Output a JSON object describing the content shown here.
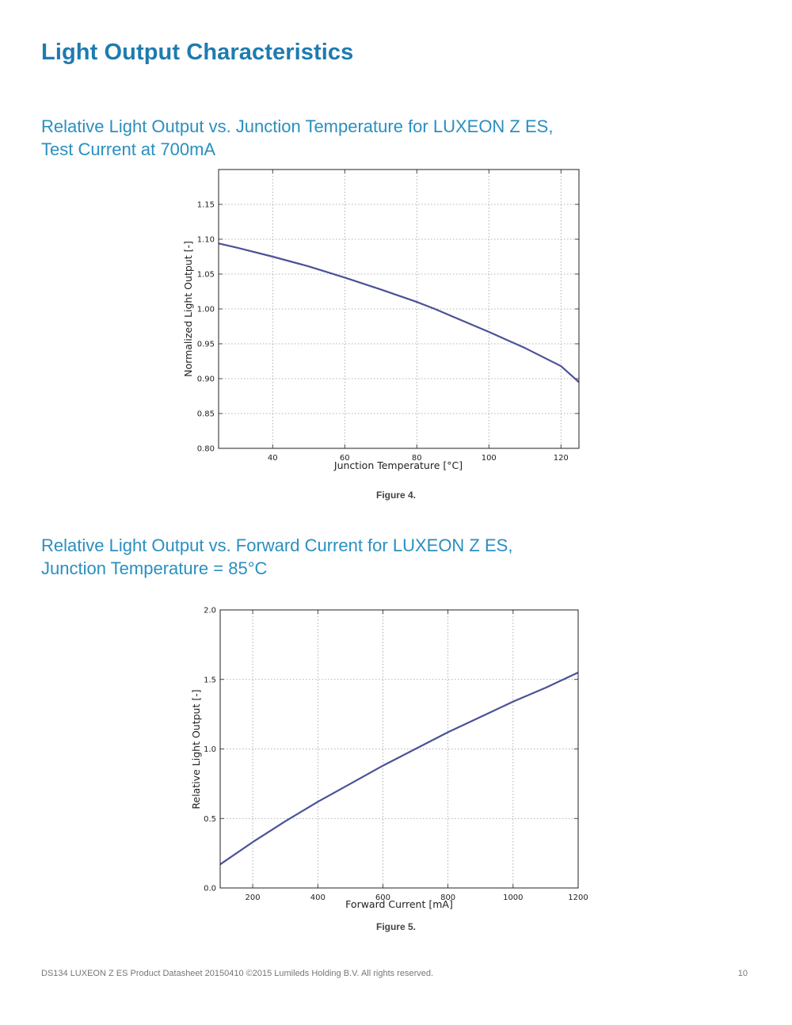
{
  "page": {
    "title": "Light Output Characteristics",
    "footer_left": "DS134 LUXEON Z ES Product Datasheet  20150410 ©2015 Lumileds Holding B.V. All rights reserved.",
    "page_number": "10"
  },
  "figure4": {
    "heading_line1": "Relative Light Output vs. Junction Temperature for LUXEON Z ES,",
    "heading_line2": "Test Current at 700mA",
    "caption": "Figure 4."
  },
  "figure5": {
    "heading_line1": "Relative Light Output vs. Forward Current for LUXEON Z ES,",
    "heading_line2": "Junction Temperature = 85°C",
    "caption": "Figure 5."
  },
  "colors": {
    "heading": "#2a8fc0",
    "title": "#1e7bb0",
    "series": "#4a5296"
  },
  "chart_data": [
    {
      "id": "chart1",
      "type": "line",
      "title": "",
      "xlabel": "Junction Temperature [°C]",
      "ylabel": "Normalized Light Output [-]",
      "xlim": [
        25,
        125
      ],
      "ylim": [
        0.8,
        1.2
      ],
      "xticks": [
        40,
        60,
        80,
        100,
        120
      ],
      "yticks": [
        0.8,
        0.85,
        0.9,
        0.95,
        1.0,
        1.05,
        1.1,
        1.15
      ],
      "ytick_labels": [
        "0.80",
        "0.85",
        "0.90",
        "0.95",
        "1.00",
        "1.05",
        "1.10",
        "1.15"
      ],
      "grid": true,
      "series": [
        {
          "name": "Normalized Light Output",
          "x": [
            25,
            30,
            40,
            50,
            60,
            70,
            80,
            85,
            90,
            100,
            110,
            120,
            125
          ],
          "y": [
            1.094,
            1.088,
            1.075,
            1.061,
            1.045,
            1.028,
            1.01,
            1.0,
            0.989,
            0.967,
            0.944,
            0.918,
            0.895
          ]
        }
      ]
    },
    {
      "id": "chart2",
      "type": "line",
      "title": "",
      "xlabel": "Forward Current [mA]",
      "ylabel": "Relative Light Output [-]",
      "xlim": [
        100,
        1200
      ],
      "ylim": [
        0.0,
        2.0
      ],
      "xticks": [
        200,
        400,
        600,
        800,
        1000,
        1200
      ],
      "yticks": [
        0.0,
        0.5,
        1.0,
        1.5,
        2.0
      ],
      "ytick_labels": [
        "0.0",
        "0.5",
        "1.0",
        "1.5",
        "2.0"
      ],
      "grid": true,
      "series": [
        {
          "name": "Relative Light Output",
          "x": [
            100,
            200,
            300,
            400,
            500,
            600,
            700,
            800,
            900,
            1000,
            1100,
            1200
          ],
          "y": [
            0.17,
            0.33,
            0.48,
            0.62,
            0.75,
            0.88,
            1.0,
            1.12,
            1.23,
            1.34,
            1.44,
            1.55
          ]
        }
      ]
    }
  ]
}
